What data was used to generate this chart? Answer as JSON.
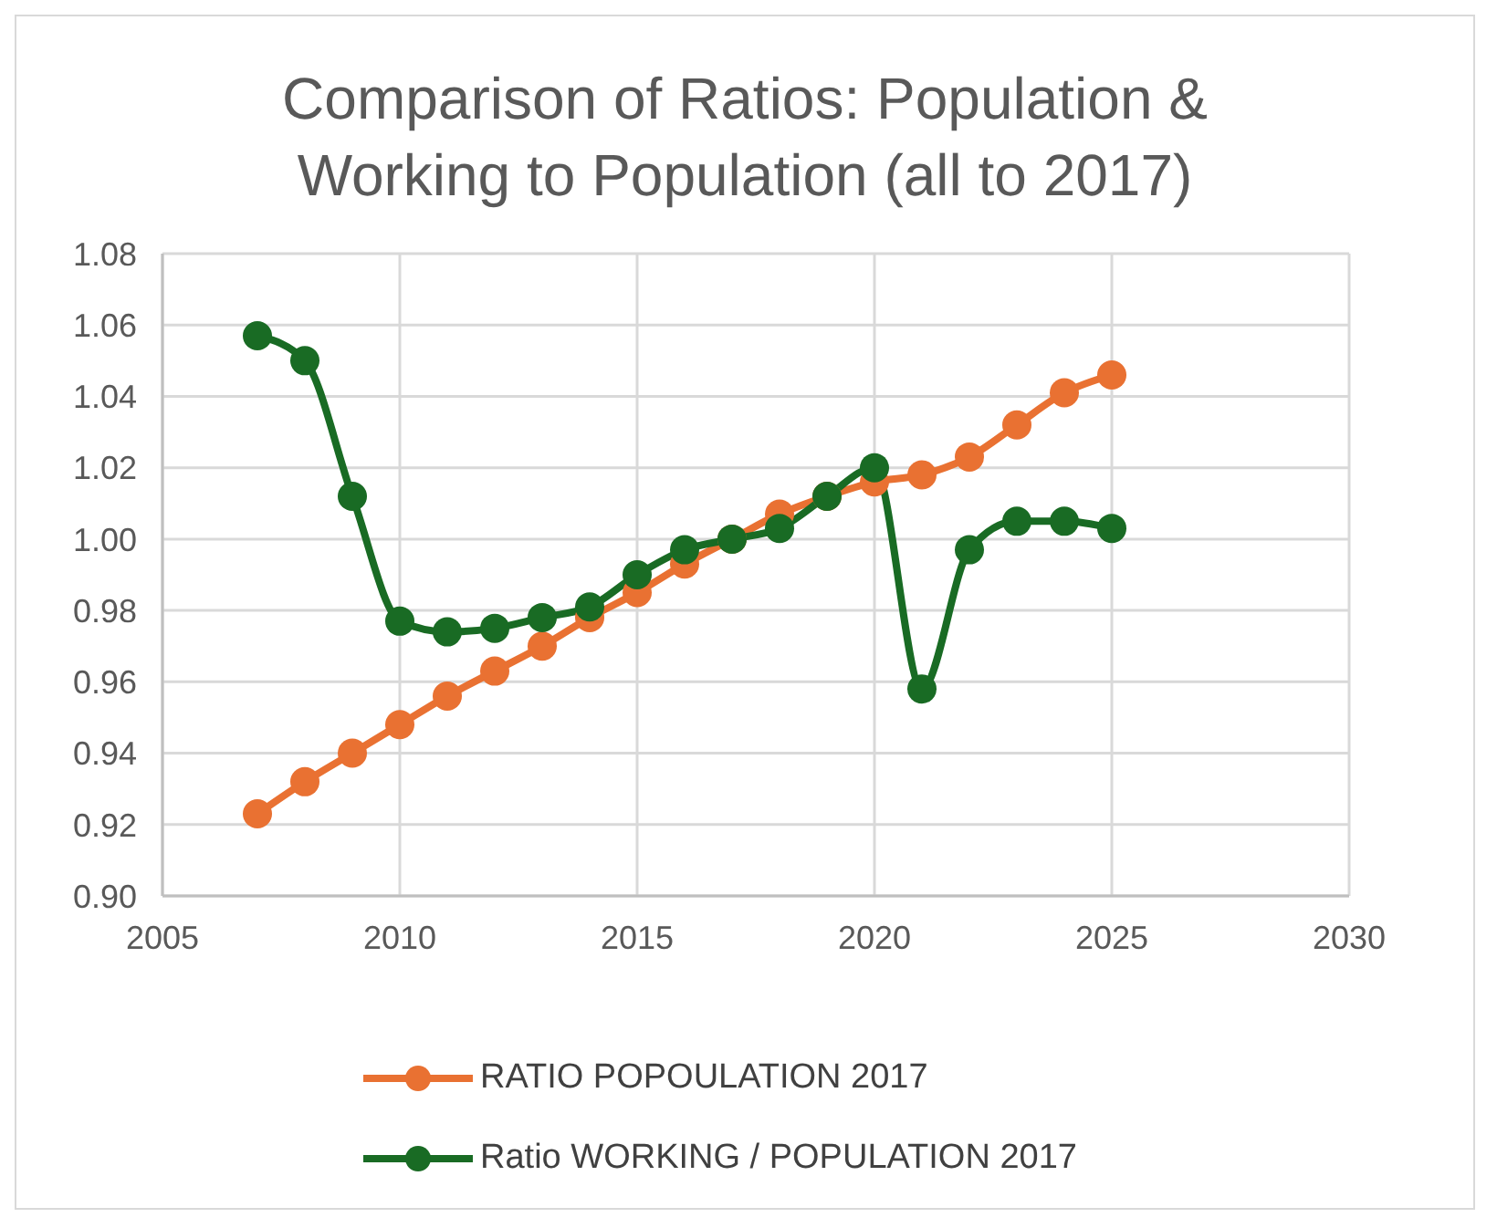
{
  "chart_data": {
    "type": "line",
    "title": "Comparison of Ratios: Population & Working to Population (all to 2017)",
    "x": [
      2007,
      2008,
      2009,
      2010,
      2011,
      2012,
      2013,
      2014,
      2015,
      2016,
      2017,
      2018,
      2019,
      2020,
      2021,
      2022,
      2023,
      2024,
      2025
    ],
    "series": [
      {
        "name": "RATIO POPOULATION 2017",
        "color": "#e97132",
        "values": [
          0.923,
          0.932,
          0.94,
          0.948,
          0.956,
          0.963,
          0.97,
          0.978,
          0.985,
          0.993,
          1.0,
          1.007,
          1.012,
          1.016,
          1.018,
          1.023,
          1.032,
          1.041,
          1.046
        ]
      },
      {
        "name": "Ratio WORKING / POPULATION 2017",
        "color": "#196b24",
        "values": [
          1.057,
          1.05,
          1.012,
          0.977,
          0.974,
          0.975,
          0.978,
          0.981,
          0.99,
          0.997,
          1.0,
          1.003,
          1.012,
          1.02,
          0.958,
          0.997,
          1.005,
          1.005,
          1.003
        ]
      }
    ],
    "xlim": [
      2005,
      2030
    ],
    "xticks": [
      2005,
      2010,
      2015,
      2020,
      2025,
      2030
    ],
    "ylim": [
      0.9,
      1.08
    ],
    "yticks": [
      {
        "value": 0.9,
        "label": "0.90"
      },
      {
        "value": 0.92,
        "label": "0.92"
      },
      {
        "value": 0.94,
        "label": "0.94"
      },
      {
        "value": 0.96,
        "label": "0.96"
      },
      {
        "value": 0.98,
        "label": "0.98"
      },
      {
        "value": 1.0,
        "label": "1.00"
      },
      {
        "value": 1.02,
        "label": "1.02"
      },
      {
        "value": 1.04,
        "label": "1.04"
      },
      {
        "value": 1.06,
        "label": "1.06"
      },
      {
        "value": 1.08,
        "label": "1.08"
      }
    ],
    "grid": true,
    "legend": "bottom",
    "marker": "circle",
    "line_style": "solid"
  }
}
